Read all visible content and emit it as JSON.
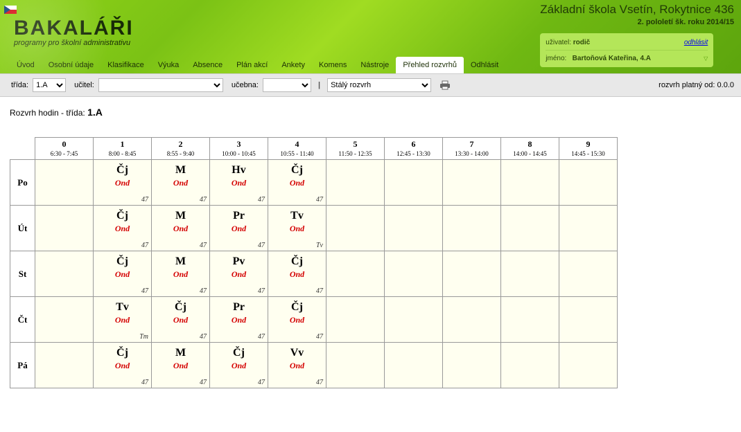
{
  "school_name": "Základní škola Vsetín, Rokytnice 436",
  "semester_line": "2. pololetí šk. roku 2014/15",
  "user_box": {
    "user_label": "uživatel:",
    "user_value": "rodič",
    "logout_label": "odhlásit",
    "name_label": "jméno:",
    "name_value": "Bartoňová Kateřina, 4.A"
  },
  "logo": {
    "main": "BAKALÁŘI",
    "sub": "programy pro školní administrativu"
  },
  "menu": [
    {
      "label": "Úvod",
      "active": false
    },
    {
      "label": "Osobní údaje",
      "active": false
    },
    {
      "label": "Klasifikace",
      "active": false
    },
    {
      "label": "Výuka",
      "active": false
    },
    {
      "label": "Absence",
      "active": false
    },
    {
      "label": "Plán akcí",
      "active": false
    },
    {
      "label": "Ankety",
      "active": false
    },
    {
      "label": "Komens",
      "active": false
    },
    {
      "label": "Nástroje",
      "active": false
    },
    {
      "label": "Přehled rozvrhů",
      "active": true
    },
    {
      "label": "Odhlásit",
      "active": false
    }
  ],
  "filter": {
    "class_label": "třída:",
    "class_value": "1.A",
    "teacher_label": "učitel:",
    "teacher_value": "",
    "room_label": "učebna:",
    "room_value": "",
    "type_value": "Stálý rozvrh",
    "valid_label": "rozvrh platný od: 0.0.0"
  },
  "content_title_prefix": "Rozvrh hodin - třída: ",
  "content_title_class": "1.A",
  "periods": [
    {
      "n": "0",
      "time": "6:30 - 7:45"
    },
    {
      "n": "1",
      "time": "8:00 - 8:45"
    },
    {
      "n": "2",
      "time": "8:55 - 9:40"
    },
    {
      "n": "3",
      "time": "10:00 - 10:45"
    },
    {
      "n": "4",
      "time": "10:55 - 11:40"
    },
    {
      "n": "5",
      "time": "11:50 - 12:35"
    },
    {
      "n": "6",
      "time": "12:45 - 13:30"
    },
    {
      "n": "7",
      "time": "13:30 - 14:00"
    },
    {
      "n": "8",
      "time": "14:00 - 14:45"
    },
    {
      "n": "9",
      "time": "14:45 - 15:30"
    }
  ],
  "days": [
    {
      "label": "Po",
      "cells": [
        null,
        {
          "subj": "Čj",
          "teacher": "Ond",
          "room": "47"
        },
        {
          "subj": "M",
          "teacher": "Ond",
          "room": "47"
        },
        {
          "subj": "Hv",
          "teacher": "Ond",
          "room": "47"
        },
        {
          "subj": "Čj",
          "teacher": "Ond",
          "room": "47"
        },
        null,
        null,
        null,
        null,
        null
      ]
    },
    {
      "label": "Út",
      "cells": [
        null,
        {
          "subj": "Čj",
          "teacher": "Ond",
          "room": "47"
        },
        {
          "subj": "M",
          "teacher": "Ond",
          "room": "47"
        },
        {
          "subj": "Pr",
          "teacher": "Ond",
          "room": "47"
        },
        {
          "subj": "Tv",
          "teacher": "Ond",
          "room": "Tv"
        },
        null,
        null,
        null,
        null,
        null
      ]
    },
    {
      "label": "St",
      "cells": [
        null,
        {
          "subj": "Čj",
          "teacher": "Ond",
          "room": "47"
        },
        {
          "subj": "M",
          "teacher": "Ond",
          "room": "47"
        },
        {
          "subj": "Pv",
          "teacher": "Ond",
          "room": "47"
        },
        {
          "subj": "Čj",
          "teacher": "Ond",
          "room": "47"
        },
        null,
        null,
        null,
        null,
        null
      ]
    },
    {
      "label": "Čt",
      "cells": [
        null,
        {
          "subj": "Tv",
          "teacher": "Ond",
          "room": "Tm"
        },
        {
          "subj": "Čj",
          "teacher": "Ond",
          "room": "47"
        },
        {
          "subj": "Pr",
          "teacher": "Ond",
          "room": "47"
        },
        {
          "subj": "Čj",
          "teacher": "Ond",
          "room": "47"
        },
        null,
        null,
        null,
        null,
        null
      ]
    },
    {
      "label": "Pá",
      "cells": [
        null,
        {
          "subj": "Čj",
          "teacher": "Ond",
          "room": "47"
        },
        {
          "subj": "M",
          "teacher": "Ond",
          "room": "47"
        },
        {
          "subj": "Čj",
          "teacher": "Ond",
          "room": "47"
        },
        {
          "subj": "Vv",
          "teacher": "Ond",
          "room": "47"
        },
        null,
        null,
        null,
        null,
        null
      ]
    }
  ],
  "style": {
    "cell_bg": "#fffff0",
    "teacher_color": "#d40000",
    "header_grad_a": "#8fd318",
    "header_grad_b": "#5da50d",
    "userbox_bg": "#b4e659"
  }
}
